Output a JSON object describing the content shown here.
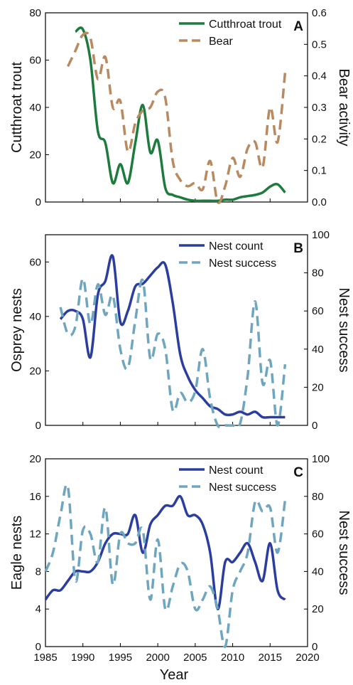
{
  "figure": {
    "x_axis": {
      "label": "Year",
      "range": [
        1985,
        2020
      ],
      "ticks": [
        1985,
        1990,
        1995,
        2000,
        2005,
        2010,
        2015,
        2020
      ]
    }
  },
  "chart_data": [
    {
      "type": "line",
      "panel_label": "A",
      "ylabel": "Cutthroat trout",
      "ylim": [
        0,
        80
      ],
      "yticks": [
        0,
        20,
        40,
        60,
        80
      ],
      "y2label": "Bear activity",
      "y2lim": [
        0,
        0.6
      ],
      "y2ticks": [
        "0.0",
        "0.1",
        "0.2",
        "0.3",
        "0.4",
        "0.5",
        "0.6"
      ],
      "legend_position": "top-right",
      "series": [
        {
          "name": "Cutthroat trout",
          "axis": "left",
          "color": "#1e7b3e",
          "style": "solid",
          "x": [
            1989,
            1990,
            1991,
            1992,
            1993,
            1994,
            1995,
            1996,
            1997,
            1998,
            1999,
            2000,
            2001,
            2002,
            2003,
            2004,
            2005,
            2006,
            2007,
            2008,
            2009,
            2010,
            2011,
            2012,
            2013,
            2014,
            2015,
            2016,
            2017
          ],
          "values": [
            72,
            73,
            60,
            30,
            25,
            8,
            16,
            8,
            25,
            41,
            21,
            26,
            6,
            3,
            2,
            1,
            0.5,
            0.5,
            0.5,
            0.5,
            1,
            1,
            2,
            2.5,
            3,
            4,
            6.5,
            7.5,
            4
          ]
        },
        {
          "name": "Bear",
          "axis": "right",
          "color": "#b98a5f",
          "style": "dashed",
          "x": [
            1988,
            1989,
            1990,
            1991,
            1992,
            1993,
            1994,
            1995,
            1996,
            1997,
            1998,
            1999,
            2000,
            2001,
            2002,
            2003,
            2004,
            2005,
            2006,
            2007,
            2008,
            2009,
            2010,
            2011,
            2012,
            2013,
            2014,
            2015,
            2016,
            2017
          ],
          "values": [
            0.43,
            0.48,
            0.53,
            0.52,
            0.39,
            0.46,
            0.3,
            0.32,
            0.16,
            0.25,
            0.29,
            0.3,
            0.35,
            0.33,
            0.13,
            0.07,
            0.05,
            0.06,
            0.04,
            0.13,
            0.0,
            0.05,
            0.14,
            0.08,
            0.17,
            0.19,
            0.11,
            0.3,
            0.19,
            0.41
          ]
        }
      ]
    },
    {
      "type": "line",
      "panel_label": "B",
      "ylabel": "Osprey nests",
      "ylim": [
        0,
        70
      ],
      "yticks": [
        0,
        20,
        40,
        60
      ],
      "y2label": "Nest success",
      "y2lim": [
        0,
        100
      ],
      "y2ticks": [
        0,
        20,
        40,
        60,
        80,
        100
      ],
      "legend_position": "top-right",
      "series": [
        {
          "name": "Nest count",
          "axis": "left",
          "color": "#2b3ea0",
          "style": "solid",
          "x": [
            1987,
            1988,
            1989,
            1990,
            1991,
            1992,
            1993,
            1994,
            1995,
            1996,
            1997,
            1998,
            1999,
            2000,
            2001,
            2002,
            2003,
            2004,
            2005,
            2006,
            2007,
            2008,
            2009,
            2010,
            2011,
            2012,
            2013,
            2014,
            2015,
            2016,
            2017
          ],
          "values": [
            39,
            42,
            42,
            39,
            25,
            48,
            53,
            62,
            38,
            42,
            51,
            52,
            55,
            58,
            59,
            45,
            26,
            18,
            13,
            10,
            7,
            6,
            4,
            4,
            5,
            4,
            5,
            3,
            3,
            3,
            3
          ]
        },
        {
          "name": "Nest success",
          "axis": "right",
          "color": "#6fa6bf",
          "style": "dashed",
          "x": [
            1987,
            1988,
            1989,
            1990,
            1991,
            1992,
            1993,
            1994,
            1995,
            1996,
            1997,
            1998,
            1999,
            2000,
            2001,
            2002,
            2003,
            2004,
            2005,
            2006,
            2007,
            2008,
            2009,
            2010,
            2011,
            2012,
            2013,
            2014,
            2015,
            2016,
            2017
          ],
          "values": [
            62,
            48,
            52,
            77,
            53,
            74,
            58,
            68,
            40,
            30,
            55,
            76,
            35,
            48,
            40,
            8,
            17,
            12,
            18,
            40,
            14,
            0,
            0,
            0,
            1,
            26,
            65,
            22,
            34,
            0,
            32
          ]
        }
      ]
    },
    {
      "type": "line",
      "panel_label": "C",
      "ylabel": "Eagle nests",
      "ylim": [
        0,
        20
      ],
      "yticks": [
        0,
        4,
        8,
        12,
        16,
        20
      ],
      "y2label": "Nest success",
      "y2lim": [
        0,
        100
      ],
      "y2ticks": [
        0,
        20,
        40,
        60,
        80,
        100
      ],
      "legend_position": "top-right",
      "series": [
        {
          "name": "Nest count",
          "axis": "left",
          "color": "#2b3ea0",
          "style": "solid",
          "x": [
            1985,
            1986,
            1987,
            1988,
            1989,
            1990,
            1991,
            1992,
            1993,
            1994,
            1995,
            1996,
            1997,
            1998,
            1999,
            2000,
            2001,
            2002,
            2003,
            2004,
            2005,
            2006,
            2007,
            2008,
            2009,
            2010,
            2011,
            2012,
            2013,
            2014,
            2015,
            2016,
            2017
          ],
          "values": [
            5,
            6,
            6,
            7,
            8,
            8,
            8,
            9,
            11,
            12,
            12,
            12,
            14,
            10,
            13,
            14,
            15,
            15,
            16,
            14,
            14,
            13,
            10,
            4,
            9,
            9,
            10,
            11,
            9,
            7,
            11,
            6,
            5
          ]
        },
        {
          "name": "Nest success",
          "axis": "right",
          "color": "#6fa6bf",
          "style": "dashed",
          "x": [
            1985,
            1986,
            1987,
            1988,
            1989,
            1990,
            1991,
            1992,
            1993,
            1994,
            1995,
            1996,
            1997,
            1998,
            1999,
            2000,
            2001,
            2002,
            2003,
            2004,
            2005,
            2006,
            2007,
            2008,
            2009,
            2010,
            2011,
            2012,
            2013,
            2014,
            2015,
            2016,
            2017
          ],
          "values": [
            40,
            50,
            70,
            85,
            35,
            62,
            60,
            45,
            74,
            33,
            60,
            55,
            55,
            62,
            25,
            57,
            20,
            32,
            44,
            40,
            20,
            25,
            32,
            20,
            0,
            30,
            40,
            50,
            77,
            72,
            74,
            50,
            78
          ]
        }
      ]
    }
  ]
}
